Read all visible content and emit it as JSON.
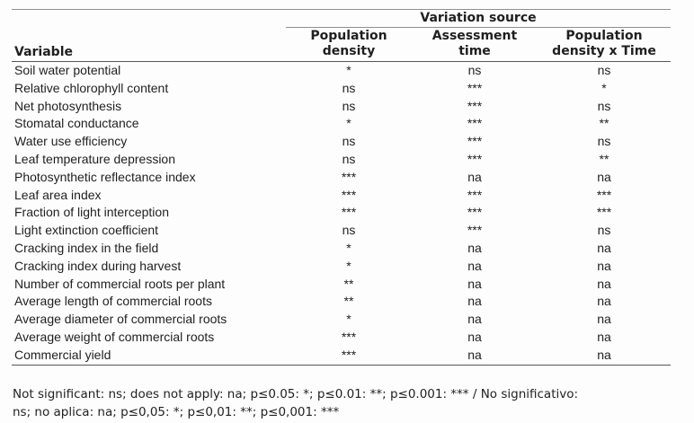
{
  "colors": {
    "background": "#fdfdfd",
    "text": "#1f1f1f",
    "rule_light": "#8f8f8f",
    "rule_dark": "#565656"
  },
  "table": {
    "spanner_label": "Variation source",
    "variable_header": "Variable",
    "column_headers": [
      {
        "line1": "Population",
        "line2": "density"
      },
      {
        "line1": "Assessment",
        "line2": "time"
      },
      {
        "line1": "Population",
        "line2": "density x Time"
      }
    ],
    "rows": [
      {
        "variable": "Soil water potential",
        "values": [
          "*",
          "ns",
          "ns"
        ]
      },
      {
        "variable": "Relative chlorophyll content",
        "values": [
          "ns",
          "***",
          "*"
        ]
      },
      {
        "variable": "Net photosynthesis",
        "values": [
          "ns",
          "***",
          "ns"
        ]
      },
      {
        "variable": "Stomatal conductance",
        "values": [
          "*",
          "***",
          "**"
        ]
      },
      {
        "variable": "Water use efficiency",
        "values": [
          "ns",
          "***",
          "ns"
        ]
      },
      {
        "variable": "Leaf temperature depression",
        "values": [
          "ns",
          "***",
          "**"
        ]
      },
      {
        "variable": "Photosynthetic reflectance index",
        "values": [
          "***",
          "na",
          "na"
        ]
      },
      {
        "variable": "Leaf area index",
        "values": [
          "***",
          "***",
          "***"
        ]
      },
      {
        "variable": "Fraction of light interception",
        "values": [
          "***",
          "***",
          "***"
        ]
      },
      {
        "variable": "Light extinction coefficient",
        "values": [
          "ns",
          "***",
          "ns"
        ]
      },
      {
        "variable": "Cracking index in the field",
        "values": [
          "*",
          "na",
          "na"
        ]
      },
      {
        "variable": "Cracking index during harvest",
        "values": [
          "*",
          "na",
          "na"
        ]
      },
      {
        "variable": "Number of commercial roots per plant",
        "values": [
          "**",
          "na",
          "na"
        ]
      },
      {
        "variable": "Average length of commercial roots",
        "values": [
          "**",
          "na",
          "na"
        ]
      },
      {
        "variable": "Average diameter of commercial roots",
        "values": [
          "*",
          "na",
          "na"
        ]
      },
      {
        "variable": "Average weight of commercial roots",
        "values": [
          "***",
          "na",
          "na"
        ]
      },
      {
        "variable": "Commercial yield",
        "values": [
          "***",
          "na",
          "na"
        ]
      }
    ]
  },
  "footnote": {
    "line1": "Not significant: ns; does not apply: na; p≤0.05: *; p≤0.01: **; p≤0.001: *** / No significativo:",
    "line2": "ns; no aplica: na; p≤0,05: *; p≤0,01: **; p≤0,001: ***"
  }
}
